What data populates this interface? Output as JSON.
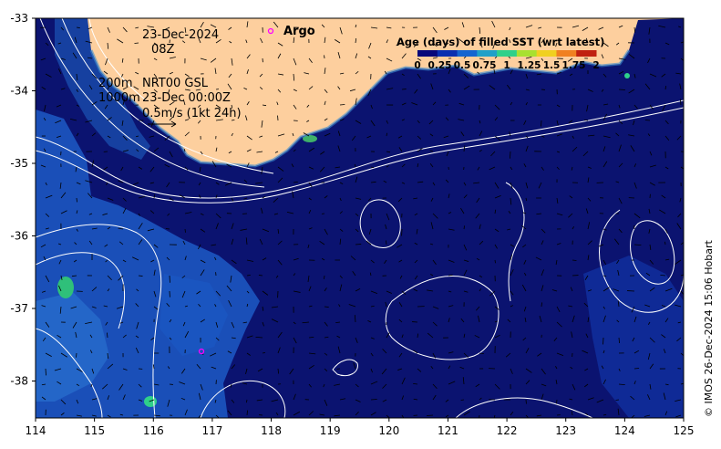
{
  "map": {
    "date": "23-Dec-2024",
    "time": "08Z",
    "depth_short": "200m",
    "depth_long": "1000m",
    "product": "NRT00 GSL",
    "product_time": "23-Dec 00:00Z",
    "vector_scale": "0.5m/s (1kt 24h)",
    "argo_label": "Argo",
    "colorbar_title": "Age (days) of filled SST (wrt latest)",
    "colorbar_ticks": [
      "0",
      "0.25",
      "0.5",
      "0.75",
      "1",
      "1.25",
      "1.5",
      "1.75",
      "2"
    ],
    "colorbar_colors": [
      "#08087a",
      "#0a2fb0",
      "#1565d0",
      "#1fa0c8",
      "#2fd08a",
      "#a8e030",
      "#f0d020",
      "#f08020",
      "#c02010"
    ],
    "x_ticks": [
      "114",
      "115",
      "116",
      "117",
      "118",
      "119",
      "120",
      "121",
      "122",
      "123",
      "124",
      "125"
    ],
    "y_ticks": [
      "-33",
      "-34",
      "-35",
      "-36",
      "-37",
      "-38"
    ],
    "credit": "© IMOS 26-Dec-2024 15:06 Hobart",
    "colors": {
      "ocean": "#0b1370",
      "land": "#fdcf9e",
      "stale": "#1a4fb8",
      "contour": "#ffffff",
      "argo": "#ff00ff"
    }
  }
}
